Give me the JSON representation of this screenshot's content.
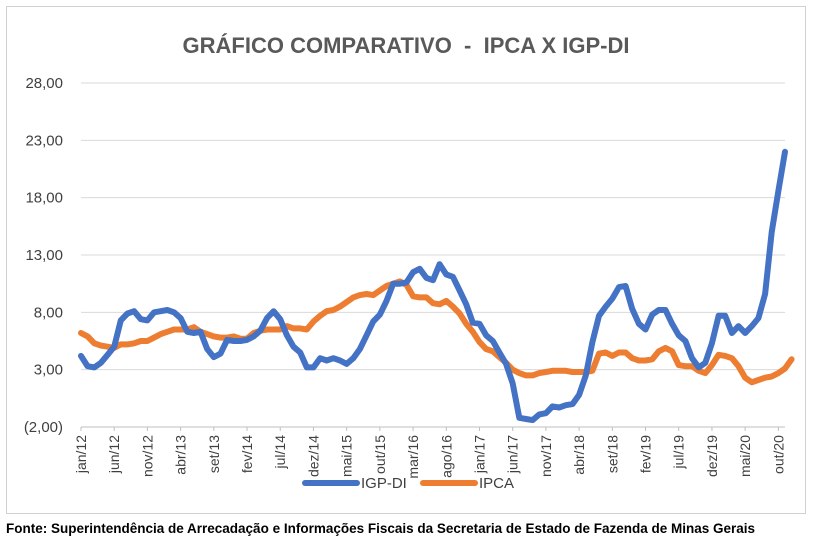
{
  "source_note": "Fonte: Superintendência de Arrecadação e Informações Fiscais da Secretaria de Estado de Fazenda de Minas Gerais",
  "chart_data": {
    "type": "line",
    "title": "GRÁFICO COMPARATIVO  -  IPCA X IGP-DI",
    "xlabel": "",
    "ylabel": "",
    "ylim": [
      -2,
      28
    ],
    "y_ticks": [
      -2,
      3,
      8,
      13,
      18,
      23,
      28
    ],
    "y_tick_labels": [
      "(2,00)",
      "3,00",
      "8,00",
      "13,00",
      "18,00",
      "23,00",
      "28,00"
    ],
    "x_tick_labels": [
      "jan/12",
      "jun/12",
      "nov/12",
      "abr/13",
      "set/13",
      "fev/14",
      "jul/14",
      "dez/14",
      "mai/15",
      "out/15",
      "mar/16",
      "ago/16",
      "jan/17",
      "jun/17",
      "nov/17",
      "abr/18",
      "set/18",
      "fev/19",
      "jul/19",
      "dez/19",
      "mai/20",
      "out/20"
    ],
    "x_tick_step_months": 5,
    "grid": "horizontal",
    "legend_position": "bottom",
    "series": [
      {
        "name": "IGP-DI",
        "color": "#4472C4",
        "values": [
          4.2,
          3.3,
          3.2,
          3.6,
          4.3,
          5.0,
          7.3,
          7.9,
          8.1,
          7.4,
          7.3,
          8.0,
          8.1,
          8.2,
          8.0,
          7.5,
          6.3,
          6.2,
          6.3,
          4.8,
          4.1,
          4.4,
          5.6,
          5.5,
          5.5,
          5.6,
          5.9,
          6.4,
          7.5,
          8.1,
          7.4,
          6.0,
          5.0,
          4.5,
          3.2,
          3.2,
          4.0,
          3.8,
          4.0,
          3.8,
          3.5,
          4.0,
          4.8,
          6.0,
          7.2,
          7.8,
          9.0,
          10.5,
          10.5,
          10.6,
          11.5,
          11.8,
          11.0,
          10.8,
          12.2,
          11.3,
          11.1,
          9.9,
          8.7,
          7.1,
          7.0,
          6.0,
          5.5,
          4.5,
          3.5,
          1.8,
          -1.2,
          -1.3,
          -1.4,
          -0.9,
          -0.8,
          -0.2,
          -0.3,
          -0.1,
          0.0,
          0.8,
          2.5,
          5.4,
          7.7,
          8.5,
          9.2,
          10.2,
          10.3,
          8.3,
          7.0,
          6.5,
          7.8,
          8.2,
          8.2,
          7.0,
          6.0,
          5.5,
          4.0,
          3.2,
          3.6,
          5.3,
          7.7,
          7.7,
          6.2,
          6.8,
          6.2,
          6.8,
          7.5,
          9.6,
          15.0,
          18.6,
          22.0
        ]
      },
      {
        "name": "IPCA",
        "color": "#ED7D31",
        "values": [
          6.2,
          5.9,
          5.3,
          5.1,
          5.0,
          4.9,
          5.2,
          5.2,
          5.3,
          5.5,
          5.5,
          5.8,
          6.1,
          6.3,
          6.5,
          6.5,
          6.5,
          6.7,
          6.3,
          6.1,
          5.9,
          5.8,
          5.8,
          5.9,
          5.7,
          5.7,
          6.2,
          6.4,
          6.5,
          6.5,
          6.5,
          6.8,
          6.6,
          6.6,
          6.5,
          7.2,
          7.7,
          8.1,
          8.2,
          8.5,
          8.9,
          9.3,
          9.5,
          9.6,
          9.5,
          9.9,
          10.3,
          10.5,
          10.7,
          10.4,
          9.4,
          9.3,
          9.3,
          8.8,
          8.7,
          9.0,
          8.5,
          7.9,
          7.0,
          6.3,
          5.4,
          4.8,
          4.6,
          4.1,
          3.6,
          3.0,
          2.7,
          2.5,
          2.5,
          2.7,
          2.8,
          2.9,
          2.9,
          2.9,
          2.8,
          2.8,
          2.8,
          2.9,
          4.4,
          4.5,
          4.2,
          4.5,
          4.5,
          4.0,
          3.8,
          3.8,
          3.9,
          4.6,
          4.9,
          4.6,
          3.4,
          3.3,
          3.3,
          2.9,
          2.7,
          3.4,
          4.3,
          4.2,
          4.0,
          3.3,
          2.3,
          1.9,
          2.1,
          2.3,
          2.4,
          2.7,
          3.1,
          3.9
        ]
      }
    ]
  }
}
